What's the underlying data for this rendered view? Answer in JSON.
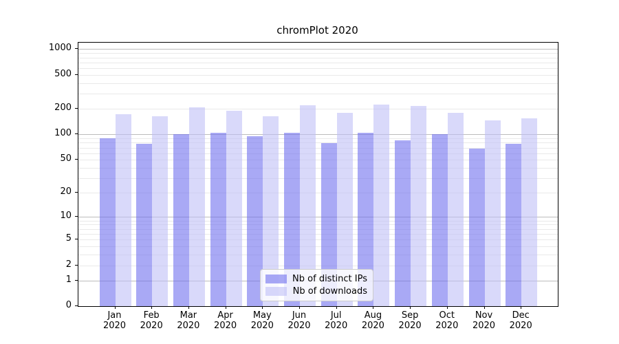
{
  "page": {
    "background": "#ffffff"
  },
  "chart_data": {
    "type": "bar",
    "title": "chromPlot 2020",
    "year": "2020",
    "months": [
      "Jan",
      "Feb",
      "Mar",
      "Apr",
      "May",
      "Jun",
      "Jul",
      "Aug",
      "Sep",
      "Oct",
      "Nov",
      "Dec"
    ],
    "series": [
      {
        "name": "Nb of distinct IPs",
        "color": "rgba(106,106,238,0.58)",
        "values": [
          90,
          78,
          100,
          104,
          95,
          104,
          79,
          105,
          86,
          101,
          68,
          78
        ]
      },
      {
        "name": "Nb of downloads",
        "color": "rgba(189,189,247,0.58)",
        "values": [
          172,
          163,
          210,
          190,
          165,
          220,
          179,
          224,
          218,
          179,
          146,
          156
        ]
      }
    ],
    "y_ticks": [
      0,
      1,
      2,
      5,
      10,
      20,
      50,
      100,
      200,
      500,
      1000
    ],
    "y_scale": "log10(value+1)",
    "ylim": [
      0,
      1190
    ],
    "grid": {
      "major_at": [
        1,
        10,
        100,
        1000
      ],
      "major_color": "#bcbcbc",
      "minor_color": "#e9e9e9"
    },
    "legend_position": "lower center"
  },
  "colors": {
    "ips_bar": "rgba(106,106,238,0.58)",
    "downloads_bar": "rgba(189,189,247,0.58)",
    "spine": "#000000",
    "legend_border": "#cccccc"
  }
}
